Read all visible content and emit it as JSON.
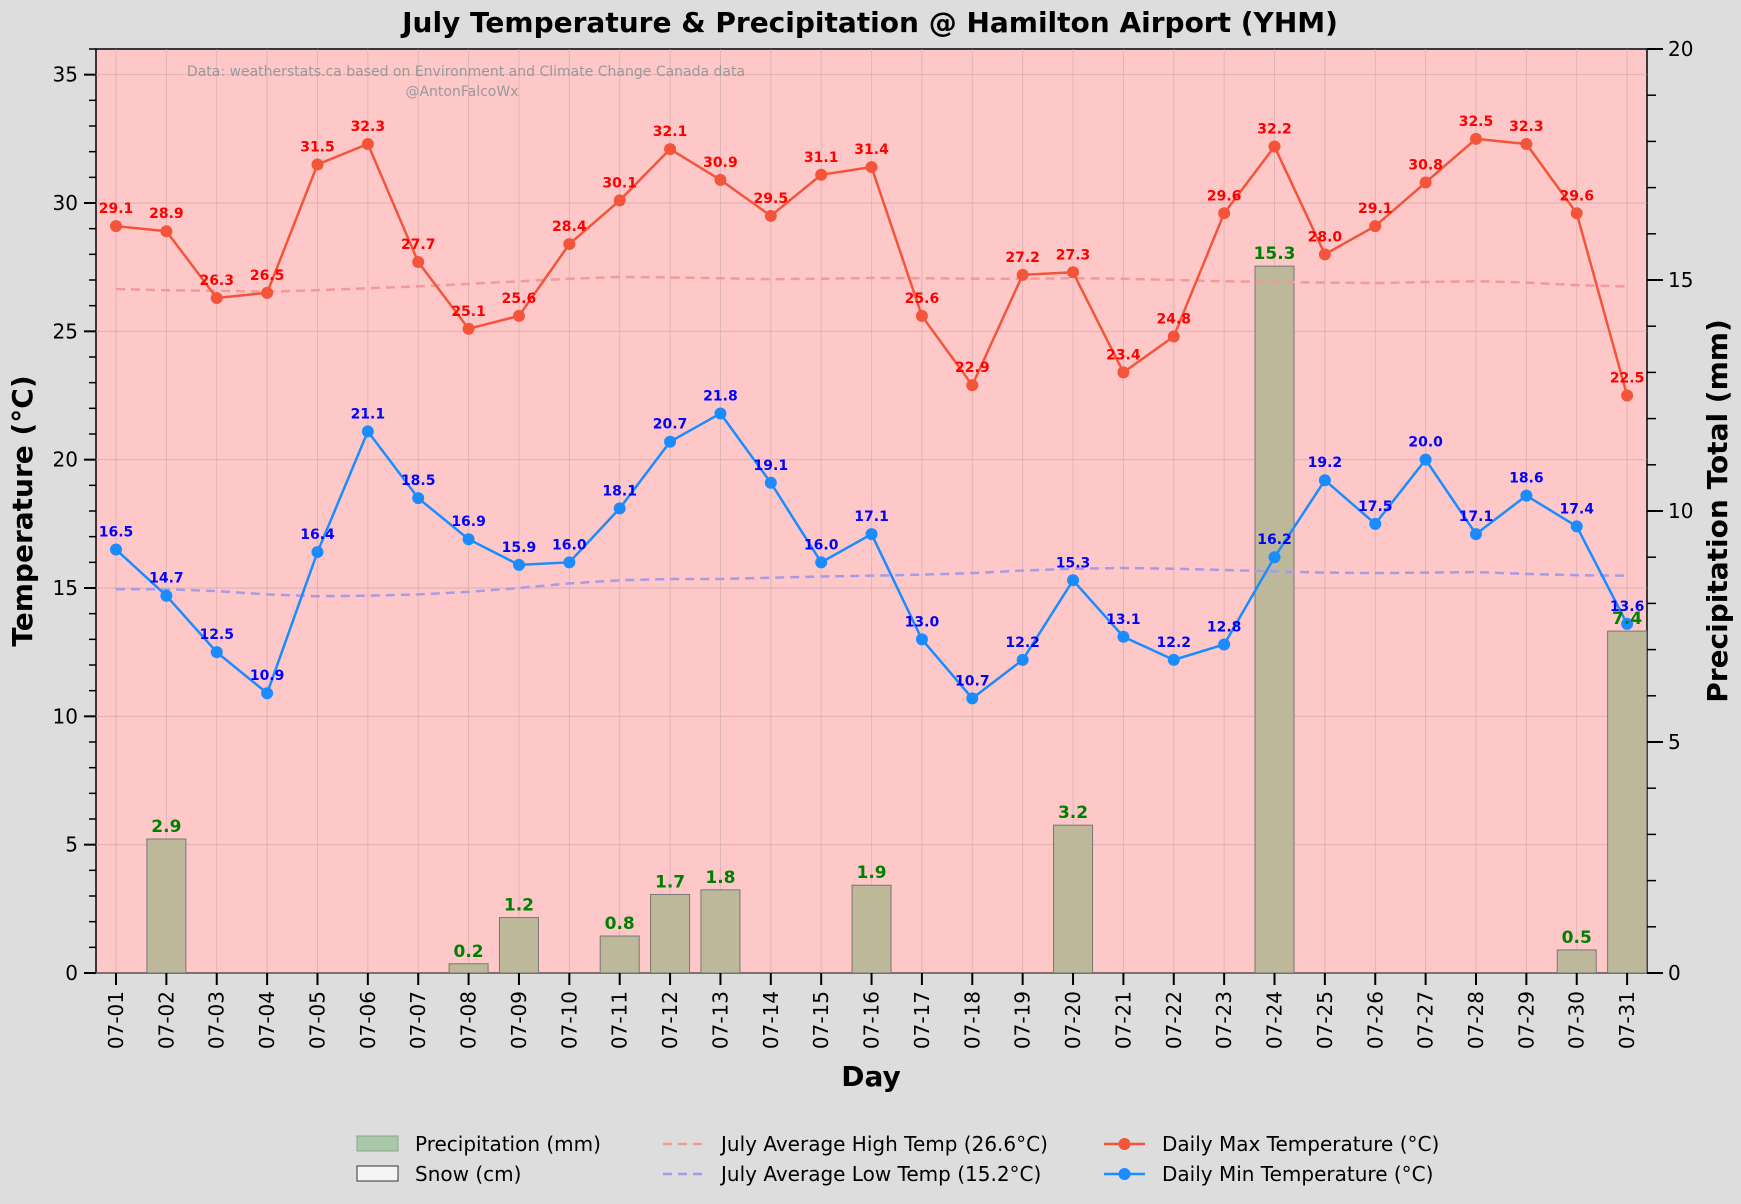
{
  "chart_data": {
    "type": "bar+line",
    "title": "July Temperature & Precipitation @ Hamilton Airport (YHM)",
    "xlabel": "Day",
    "ylabel_left": "Temperature (°C)",
    "ylabel_right": "Precipitation Total (mm)",
    "ylim_left": [
      0,
      36
    ],
    "ylim_right": [
      0,
      20
    ],
    "yticks_left": [
      0,
      5,
      10,
      15,
      20,
      25,
      30,
      35
    ],
    "yticks_right": [
      0,
      5,
      10,
      15,
      20
    ],
    "credit_line1": "Data: weatherstats.ca based on Environment and Climate Change Canada data",
    "credit_line2": "@AntonFalcoWx",
    "categories": [
      "07-01",
      "07-02",
      "07-03",
      "07-04",
      "07-05",
      "07-06",
      "07-07",
      "07-08",
      "07-09",
      "07-10",
      "07-11",
      "07-12",
      "07-13",
      "07-14",
      "07-15",
      "07-16",
      "07-17",
      "07-18",
      "07-19",
      "07-20",
      "07-21",
      "07-22",
      "07-23",
      "07-24",
      "07-25",
      "07-26",
      "07-27",
      "07-28",
      "07-29",
      "07-30",
      "07-31"
    ],
    "series": [
      {
        "name": "Daily Max Temperature (°C)",
        "type": "line",
        "color": "#f4553a",
        "axis": "left",
        "values": [
          29.1,
          28.9,
          26.3,
          26.5,
          31.5,
          32.3,
          27.7,
          25.1,
          25.6,
          28.4,
          30.1,
          32.1,
          30.9,
          29.5,
          31.1,
          31.4,
          25.6,
          22.9,
          27.2,
          27.3,
          23.4,
          24.8,
          29.6,
          32.2,
          28.0,
          29.1,
          30.8,
          32.5,
          32.3,
          29.6,
          22.5
        ],
        "labels": [
          "29.1",
          "28.9",
          "26.3",
          "26.5",
          "31.5",
          "32.3",
          "27.7",
          "25.1",
          "25.6",
          "28.4",
          "30.1",
          "32.1",
          "30.9",
          "29.5",
          "31.1",
          "31.4",
          "25.6",
          "22.9",
          "27.2",
          "27.3",
          "23.4",
          "24.8",
          "29.6",
          "32.2",
          "28.0",
          "29.1",
          "30.8",
          "32.5",
          "32.3",
          "29.6",
          "22.5"
        ]
      },
      {
        "name": "Daily Min Temperature (°C)",
        "type": "line",
        "color": "#1a8cff",
        "axis": "left",
        "values": [
          16.5,
          14.7,
          12.5,
          10.9,
          16.4,
          21.1,
          18.5,
          16.9,
          15.9,
          16.0,
          18.1,
          20.7,
          21.8,
          19.1,
          16.0,
          17.1,
          13.0,
          10.7,
          12.2,
          15.3,
          13.1,
          12.2,
          12.8,
          16.2,
          19.2,
          17.5,
          20.0,
          17.1,
          18.6,
          17.4,
          13.6
        ],
        "labels": [
          "16.5",
          "14.7",
          "12.5",
          "10.9",
          "16.4",
          "21.1",
          "18.5",
          "16.9",
          "15.9",
          "16.0",
          "18.1",
          "20.7",
          "21.8",
          "19.1",
          "16.0",
          "17.1",
          "13.0",
          "10.7",
          "12.2",
          "15.3",
          "13.1",
          "12.2",
          "12.8",
          "16.2",
          "19.2",
          "17.5",
          "20.0",
          "17.1",
          "18.6",
          "17.4",
          "13.6"
        ]
      },
      {
        "name": "July Average High Temp (26.6°C)",
        "type": "dashed-line",
        "color": "#f09a9a",
        "axis": "left",
        "values": [
          26.65,
          26.6,
          26.58,
          26.55,
          26.6,
          26.68,
          26.75,
          26.85,
          26.95,
          27.05,
          27.12,
          27.1,
          27.07,
          27.03,
          27.05,
          27.08,
          27.07,
          27.05,
          27.05,
          27.07,
          27.05,
          27.0,
          26.95,
          26.92,
          26.9,
          26.88,
          26.92,
          26.95,
          26.9,
          26.8,
          26.75
        ]
      },
      {
        "name": "July Average Low Temp (15.2°C)",
        "type": "dashed-line",
        "color": "#a79be6",
        "axis": "left",
        "values": [
          14.95,
          14.95,
          14.88,
          14.75,
          14.68,
          14.7,
          14.75,
          14.85,
          15.0,
          15.18,
          15.3,
          15.35,
          15.35,
          15.4,
          15.45,
          15.48,
          15.52,
          15.58,
          15.68,
          15.75,
          15.78,
          15.75,
          15.7,
          15.65,
          15.6,
          15.58,
          15.6,
          15.62,
          15.55,
          15.5,
          15.48
        ]
      },
      {
        "name": "Precipitation (mm)",
        "type": "bar",
        "color": "#a8c8a8",
        "axis": "right",
        "values": [
          0,
          2.9,
          0,
          0,
          0,
          0,
          0,
          0.2,
          1.2,
          0,
          0.8,
          1.7,
          1.8,
          0,
          0,
          1.9,
          0,
          0,
          0,
          3.2,
          0,
          0,
          0,
          15.3,
          0,
          0,
          0,
          0,
          0,
          0.5,
          7.4
        ],
        "labels": [
          "",
          "2.9",
          "",
          "",
          "",
          "",
          "",
          "0.2",
          "1.2",
          "",
          "0.8",
          "1.7",
          "1.8",
          "",
          "",
          "1.9",
          "",
          "",
          "",
          "3.2",
          "",
          "",
          "",
          "15.3",
          "",
          "",
          "",
          "",
          "",
          "0.5",
          "7.4"
        ]
      }
    ],
    "legend": {
      "position": "bottom",
      "entries": [
        {
          "label": "Precipitation (mm)",
          "kind": "patch",
          "color": "#a8c8a8"
        },
        {
          "label": "Snow (cm)",
          "kind": "patch",
          "color": "#f5f5f5"
        },
        {
          "label": "July Average High Temp (26.6°C)",
          "kind": "dashed",
          "color": "#f09a9a"
        },
        {
          "label": "July Average Low Temp (15.2°C)",
          "kind": "dashed",
          "color": "#a79be6"
        },
        {
          "label": "Daily Max Temperature (°C)",
          "kind": "line-marker",
          "color": "#f4553a"
        },
        {
          "label": "Daily Min Temperature (°C)",
          "kind": "line-marker",
          "color": "#1a8cff"
        }
      ]
    },
    "colors": {
      "plot_background": "#ffc8c8",
      "figure_background": "#dddddd",
      "bar_fill": "#bdb89a",
      "bar_edge": "#777777"
    }
  }
}
